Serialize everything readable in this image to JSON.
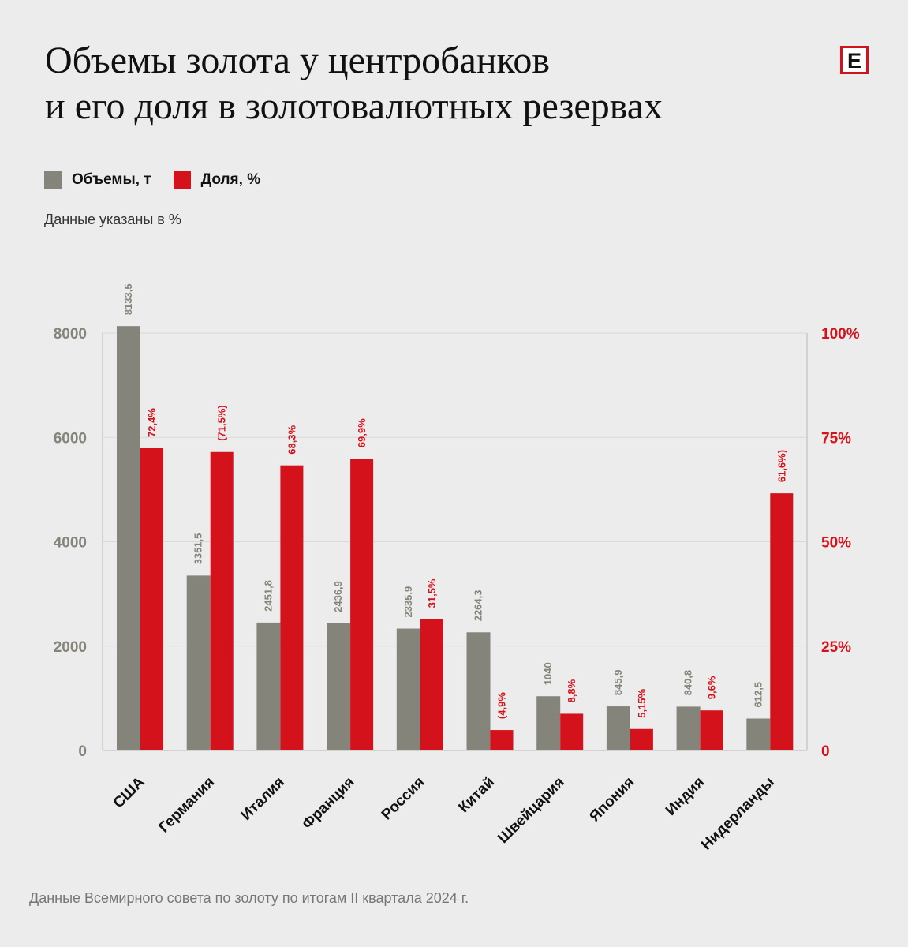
{
  "header": {
    "title_line1": "Объемы золота у центробанков",
    "title_line2": "и его доля в золотовалютных резервах",
    "logo_letter": "Е"
  },
  "legend": {
    "volume_label": "Объемы, т",
    "share_label": "Доля, %"
  },
  "note": "Данные указаны в %",
  "source": "Данные Всемирного совета по золоту по итогам II квартала 2024 г.",
  "colors": {
    "volume": "#85847a",
    "share": "#d4121b",
    "background": "#ececec",
    "grid": "#d9d9d9"
  },
  "chart_data": {
    "type": "bar",
    "categories": [
      "США",
      "Германия",
      "Италия",
      "Франция",
      "Россия",
      "Китай",
      "Швейцария",
      "Япония",
      "Индия",
      "Нидерланды"
    ],
    "series": [
      {
        "name": "Объемы, т",
        "axis": "left",
        "values": [
          8133.5,
          3351.5,
          2451.8,
          2436.9,
          2335.9,
          2264.3,
          1040,
          845.9,
          840.8,
          612.5
        ],
        "labels": [
          "8133,5",
          "3351,5",
          "2451,8",
          "2436,9",
          "2335,9",
          "2264,3",
          "1040",
          "845,9",
          "840,8",
          "612,5"
        ]
      },
      {
        "name": "Доля, %",
        "axis": "right",
        "values": [
          72.4,
          71.5,
          68.3,
          69.9,
          31.5,
          4.9,
          8.8,
          5.15,
          9.6,
          61.6
        ],
        "labels": [
          "72,4%",
          "(71,5%)",
          "68,3%",
          "69,9%",
          "31,5%",
          "(4,9%",
          "8,8%",
          "5,15%",
          "9,6%",
          "61,6%)"
        ]
      }
    ],
    "left_axis": {
      "ylim": [
        0,
        8000
      ],
      "ticks": [
        "0",
        "2000",
        "4000",
        "6000",
        "8000"
      ]
    },
    "right_axis": {
      "ylim": [
        0,
        100
      ],
      "ticks": [
        "0",
        "25%",
        "50%",
        "75%",
        "100%"
      ]
    },
    "grid": true,
    "legend_position": "top-left"
  }
}
